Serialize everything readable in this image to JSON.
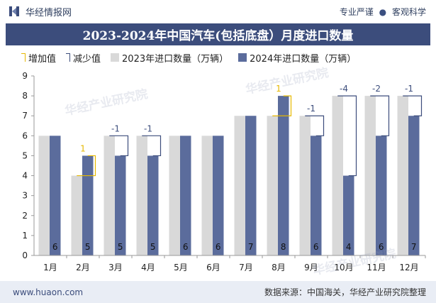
{
  "header": {
    "brand_name": "华经情报网",
    "slogan_left": "专业严谨",
    "slogan_sep": "●",
    "slogan_right": "客观科学"
  },
  "title": "2023-2024年中国汽车(包括底盘）月度进口数量",
  "legend": {
    "increase": "增加值",
    "decrease": "减少值",
    "series_2023": "2023年进口数量（万辆）",
    "series_2024": "2024年进口数量（万辆）"
  },
  "watermarks": [
    "华经产业研究院",
    "华经产业研究院",
    "华经产业研究院"
  ],
  "footer": {
    "url": "www.huaon.com",
    "source": "数据来源：中国海关，华经产业研究院整理"
  },
  "colors": {
    "title_bg": "#3c4d7c",
    "bar_2023": "#d9d9d9",
    "bar_2024": "#5b6c9c",
    "increase": "#e6b800",
    "decrease": "#3c4d7c"
  },
  "chart_data": {
    "type": "bar",
    "categories": [
      "1月",
      "2月",
      "3月",
      "4月",
      "5月",
      "6月",
      "7月",
      "8月",
      "9月",
      "10月",
      "11月",
      "12月"
    ],
    "series": [
      {
        "name": "2023年进口数量（万辆）",
        "values": [
          6,
          4,
          6,
          6,
          6,
          6,
          7,
          7,
          7,
          8,
          8,
          8
        ]
      },
      {
        "name": "2024年进口数量（万辆）",
        "values": [
          6,
          5,
          5,
          5,
          6,
          6,
          7,
          8,
          6,
          4,
          6,
          7
        ]
      }
    ],
    "data_labels_2024": [
      "6",
      "5",
      "5",
      "5",
      "6",
      "6",
      "7",
      "8",
      "6",
      "4",
      "6",
      "7"
    ],
    "change_labels": [
      "",
      "1",
      "-1",
      "-1",
      "",
      "",
      "",
      "1",
      "-1",
      "-4",
      "-2",
      "-1"
    ],
    "y_ticks": [
      "0",
      "1",
      "2",
      "3",
      "4",
      "5",
      "6",
      "7",
      "8",
      "9"
    ],
    "ylim": [
      0,
      9
    ],
    "grid": false,
    "legend_position": "top"
  }
}
